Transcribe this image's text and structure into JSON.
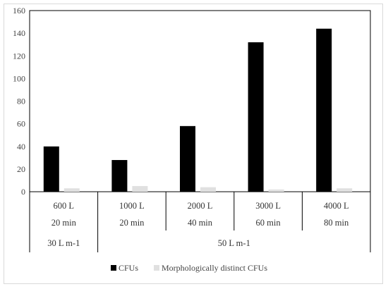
{
  "chart_data": {
    "type": "bar",
    "categories": [
      {
        "volume": "600 L",
        "time": "20 min"
      },
      {
        "volume": "1000 L",
        "time": "20 min"
      },
      {
        "volume": "2000 L",
        "time": "40 min"
      },
      {
        "volume": "3000 L",
        "time": "60 min"
      },
      {
        "volume": "4000 L",
        "time": "80 min"
      }
    ],
    "flow_groups": [
      {
        "label": "30 L m-1",
        "span": [
          0,
          0
        ]
      },
      {
        "label": "50 L m-1",
        "span": [
          1,
          4
        ]
      }
    ],
    "series": [
      {
        "name": "CFUs",
        "color": "#000000",
        "values": [
          40,
          28,
          58,
          132,
          144
        ]
      },
      {
        "name": "Morphologically distinct CFUs",
        "color": "#e0e0e0",
        "values": [
          3,
          5,
          4,
          2,
          3
        ]
      }
    ],
    "ylim": [
      0,
      160
    ],
    "yticks": [
      0,
      20,
      40,
      60,
      80,
      100,
      120,
      140,
      160
    ],
    "legend_position": "bottom",
    "grid": false
  }
}
